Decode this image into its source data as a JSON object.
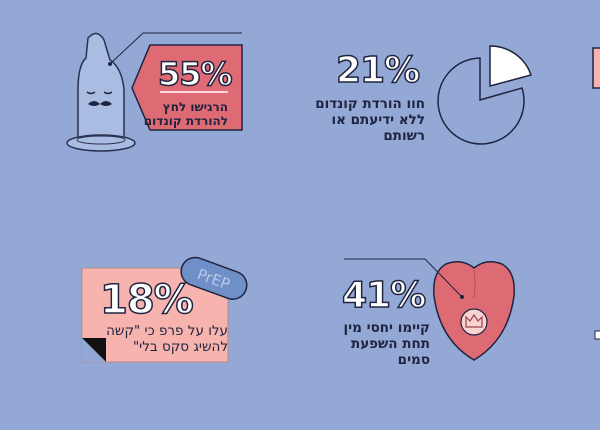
{
  "stats": [
    {
      "value": "55%",
      "lines": [
        "הרגישו לחץ",
        "להורדת קונדום"
      ],
      "illustration": "condom-icon"
    },
    {
      "value": "21%",
      "lines": [
        "חוו הורדת קונדום",
        "ללא ידיעתם או",
        "רשותם"
      ],
      "illustration": "pie-chart-icon",
      "pie_fraction": 0.21
    },
    {
      "value": "18%",
      "lines": [
        "עלו על פרפ כי \"קשה",
        "להשיג סקס בלי\""
      ],
      "illustration": "pill-icon",
      "pill_label": "PrEP"
    },
    {
      "value": "41%",
      "lines": [
        "קיימו יחסי מין",
        "תחת השפעת",
        "סמים"
      ],
      "illustration": "tongue-icon"
    }
  ],
  "colors": {
    "background": "#93a8d4",
    "red": "#de6a74",
    "pink": "#f7b3ad",
    "pill": "#6f8fc8",
    "ink": "#1f2440"
  }
}
